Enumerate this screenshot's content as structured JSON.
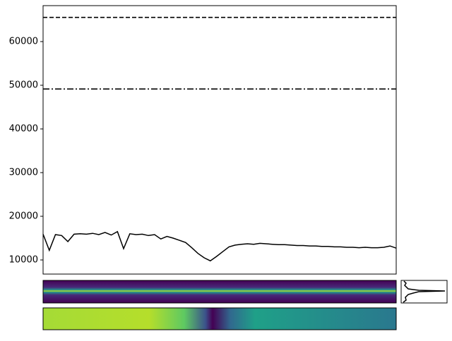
{
  "chart_data": {
    "type": "line",
    "ylim": [
      6770,
      68230
    ],
    "yticks": [
      10000,
      20000,
      30000,
      40000,
      50000,
      60000
    ],
    "series": [
      {
        "color": "#000000",
        "values": [
          15900,
          12200,
          15800,
          15600,
          14200,
          15900,
          16000,
          15900,
          16100,
          15800,
          16300,
          15700,
          16500,
          12600,
          16000,
          15800,
          15900,
          15600,
          15800,
          14800,
          15400,
          15000,
          14500,
          14000,
          12800,
          11500,
          10500,
          9800,
          10800,
          11900,
          13000,
          13400,
          13600,
          13700,
          13600,
          13800,
          13700,
          13600,
          13500,
          13500,
          13400,
          13300,
          13300,
          13200,
          13200,
          13100,
          13100,
          13000,
          13000,
          12900,
          12900,
          12800,
          12900,
          12800,
          12800,
          12900,
          13200,
          12700
        ]
      }
    ],
    "hlines": [
      {
        "value": 65535,
        "style": "dashed",
        "color": "#000000"
      },
      {
        "value": 49151,
        "style": "dashdot",
        "color": "#000000"
      }
    ]
  }
}
